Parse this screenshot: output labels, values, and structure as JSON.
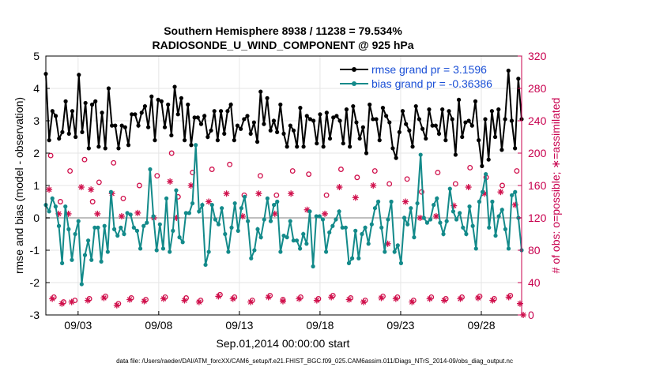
{
  "chart_data": {
    "type": "line",
    "title_line1": "Southern Hemisphere 8938 / 11238 = 79.534%",
    "title_line2": "RADIOSONDE_U_WIND_COMPONENT @ 925 hPa",
    "xlabel": "Sep.01,2014 00:00:00 start",
    "ylabel_left": "rmse and bias (model - observation)",
    "ylabel_right": "# of obs: o=possible; ∗=assimilated",
    "footer": "data file: /Users/raeder/DAI/ATM_forcXX/CAM6_setup/f.e21.FHIST_BGC.f09_025.CAM6assim.011/Diags_NTrS_2014-09/obs_diag_output.nc",
    "xlim": [
      1,
      30.5
    ],
    "ylim_left": [
      -3,
      5
    ],
    "ylim_right": [
      0,
      320
    ],
    "x_ticks": [
      3,
      8,
      13,
      18,
      23,
      28
    ],
    "x_tick_labels": [
      "09/03",
      "09/08",
      "09/13",
      "09/18",
      "09/23",
      "09/28"
    ],
    "y_ticks_left": [
      5,
      4,
      3,
      2,
      1,
      0,
      -1,
      -2,
      -3
    ],
    "y_ticks_right": [
      320,
      280,
      240,
      200,
      160,
      120,
      80,
      40,
      0
    ],
    "colors": {
      "rmse": "#000000",
      "bias": "#138a8a",
      "obs": "#d0104c",
      "zero_line": "#bfbfbf",
      "legend_text": "#1a4fd6",
      "right_axis": "#c8004e"
    },
    "series": [
      {
        "name": "rmse grand pr = 3.1596",
        "axis": "left",
        "values": [
          4.45,
          2.4,
          3.3,
          3.15,
          2.45,
          2.65,
          3.6,
          2.6,
          3.3,
          2.5,
          4.42,
          2.65,
          3.55,
          2.15,
          3.5,
          3.6,
          2.2,
          3.25,
          2.15,
          4.0,
          2.85,
          2.85,
          2.15,
          2.85,
          2.8,
          2.25,
          3.2,
          3.2,
          2.85,
          3.25,
          3.45,
          2.8,
          3.75,
          2.4,
          3.65,
          3.6,
          2.8,
          3.5,
          2.55,
          4.05,
          3.2,
          3.7,
          2.4,
          3.5,
          2.25,
          3.1,
          3.1,
          2.9,
          3.15,
          2.5,
          2.7,
          3.3,
          2.4,
          3.3,
          2.6,
          3.3,
          3.5,
          2.4,
          2.85,
          2.75,
          3.05,
          3.15,
          2.6,
          2.95,
          2.35,
          3.9,
          2.9,
          3.7,
          2.7,
          3.0,
          2.65,
          3.5,
          2.6,
          2.2,
          2.85,
          2.7,
          2.2,
          3.4,
          2.2,
          3.15,
          3.05,
          3.0,
          2.3,
          3.2,
          2.2,
          3.25,
          2.45,
          3.1,
          3.15,
          3.0,
          2.3,
          3.35,
          2.2,
          3.45,
          2.95,
          2.45,
          2.8,
          2.0,
          3.5,
          3.05,
          3.05,
          2.4,
          3.4,
          3.15,
          2.95,
          2.15,
          1.85,
          2.65,
          3.3,
          2.9,
          2.7,
          2.2,
          3.45,
          3.05,
          2.75,
          2.45,
          3.35,
          2.85,
          2.85,
          2.6,
          3.35,
          2.4,
          3.3,
          3.05,
          1.95,
          3.65,
          2.5,
          2.95,
          3.0,
          2.85,
          3.6,
          2.4,
          1.6,
          3.05,
          1.8,
          3.3,
          2.5,
          3.35,
          2.1,
          3.05,
          4.55,
          3.0,
          2.15,
          4.3,
          3.05
        ]
      },
      {
        "name": "bias grand pr = -0.36386",
        "axis": "left",
        "values": [
          0.4,
          0.2,
          0.6,
          0.35,
          -0.25,
          -1.4,
          0.35,
          -0.35,
          -1.3,
          -0.5,
          -0.1,
          -2.05,
          -1.15,
          -0.7,
          -1.3,
          -0.3,
          -0.3,
          -1.35,
          -0.25,
          -1.05,
          0.8,
          -0.35,
          -0.55,
          -0.3,
          -0.5,
          0.15,
          0.1,
          -0.3,
          -0.4,
          -0.95,
          -0.25,
          -0.15,
          1.5,
          0.05,
          -1.0,
          -0.2,
          -0.95,
          0.6,
          -1.05,
          -0.4,
          0.85,
          -0.6,
          -0.75,
          0.15,
          0.15,
          0.45,
          2.25,
          0.2,
          0.4,
          -1.45,
          -1.05,
          0.4,
          -0.05,
          -0.2,
          0.3,
          -0.5,
          -1.05,
          -0.3,
          0.45,
          -0.4,
          0.3,
          0.65,
          -0.1,
          -1.25,
          -1.0,
          -0.35,
          -0.6,
          -0.05,
          0.6,
          -0.1,
          0.4,
          0.5,
          -1.05,
          -0.55,
          -0.6,
          -0.1,
          -0.7,
          -0.7,
          -0.95,
          -0.5,
          -0.8,
          0.2,
          -1.5,
          0.05,
          0.05,
          -0.05,
          -1.05,
          -0.45,
          -0.25,
          -0.05,
          0.2,
          -0.3,
          -0.3,
          -1.4,
          -1.25,
          -0.4,
          -1.25,
          -0.5,
          -0.3,
          -0.8,
          -0.2,
          0.3,
          0.5,
          -0.3,
          -1.05,
          -0.05,
          0.5,
          -1.05,
          -0.85,
          -1.4,
          0.0,
          -0.2,
          0.3,
          -0.6,
          0.45,
          1.95,
          0.0,
          -0.15,
          -0.05,
          0.4,
          0.6,
          -0.15,
          -0.5,
          -0.1,
          0.9,
          0.2,
          -0.05,
          0.15,
          -0.3,
          -0.5,
          0.35,
          -0.25,
          -0.95,
          0.5,
          0.8,
          1.35,
          -0.3,
          0.5,
          -0.55,
          0.05,
          0.25,
          -0.35,
          -0.95,
          0.7,
          0.8,
          0.0,
          -1.0
        ]
      },
      {
        "name": "obs possible",
        "axis": "right",
        "marker": "o",
        "points": [
          [
            1.3,
            197
          ],
          [
            1.5,
            22
          ],
          [
            1.9,
            140
          ],
          [
            2.1,
            16
          ],
          [
            2.5,
            178
          ],
          [
            2.8,
            18
          ],
          [
            3.4,
            192
          ],
          [
            3.7,
            20
          ],
          [
            3.9,
            140
          ],
          [
            4.3,
            164
          ],
          [
            4.7,
            23
          ],
          [
            5.2,
            188
          ],
          [
            5.5,
            14
          ],
          [
            5.8,
            144
          ],
          [
            6.3,
            21
          ],
          [
            6.8,
            160
          ],
          [
            7.2,
            19
          ],
          [
            7.9,
            172
          ],
          [
            8.4,
            22
          ],
          [
            8.8,
            200
          ],
          [
            9.2,
            146
          ],
          [
            9.7,
            21
          ],
          [
            10.1,
            176
          ],
          [
            10.6,
            18
          ],
          [
            11.3,
            180
          ],
          [
            11.8,
            25
          ],
          [
            12.4,
            186
          ],
          [
            12.7,
            22
          ],
          [
            13.3,
            148
          ],
          [
            13.8,
            18
          ],
          [
            14.3,
            172
          ],
          [
            14.9,
            24
          ],
          [
            15.3,
            148
          ],
          [
            15.7,
            19
          ],
          [
            16.3,
            178
          ],
          [
            16.8,
            22
          ],
          [
            17.3,
            174
          ],
          [
            17.9,
            20
          ],
          [
            18.4,
            148
          ],
          [
            18.8,
            24
          ],
          [
            19.3,
            180
          ],
          [
            19.9,
            21
          ],
          [
            20.3,
            170
          ],
          [
            20.8,
            18
          ],
          [
            21.4,
            178
          ],
          [
            21.9,
            23
          ],
          [
            22.3,
            162
          ],
          [
            22.8,
            22
          ],
          [
            23.4,
            168
          ],
          [
            23.8,
            18
          ],
          [
            24.3,
            152
          ],
          [
            24.9,
            22
          ],
          [
            25.3,
            176
          ],
          [
            25.8,
            20
          ],
          [
            26.4,
            162
          ],
          [
            26.8,
            22
          ],
          [
            27.3,
            182
          ],
          [
            27.9,
            23
          ],
          [
            28.3,
            170
          ],
          [
            28.8,
            20
          ],
          [
            29.3,
            160
          ],
          [
            29.8,
            24
          ],
          [
            30.2,
            178
          ]
        ]
      },
      {
        "name": "obs assimilated",
        "axis": "right",
        "marker": "*",
        "points": [
          [
            1.2,
            155
          ],
          [
            1.4,
            20
          ],
          [
            1.8,
            125
          ],
          [
            2.0,
            14
          ],
          [
            2.4,
            125
          ],
          [
            2.6,
            16
          ],
          [
            3.2,
            158
          ],
          [
            3.6,
            18
          ],
          [
            3.8,
            155
          ],
          [
            4.2,
            125
          ],
          [
            4.6,
            21
          ],
          [
            5.1,
            150
          ],
          [
            5.4,
            12
          ],
          [
            5.7,
            122
          ],
          [
            6.2,
            19
          ],
          [
            6.7,
            126
          ],
          [
            7.1,
            17
          ],
          [
            7.7,
            120
          ],
          [
            8.3,
            20
          ],
          [
            8.7,
            165
          ],
          [
            9.1,
            120
          ],
          [
            9.6,
            18
          ],
          [
            10.0,
            160
          ],
          [
            10.5,
            16
          ],
          [
            11.1,
            140
          ],
          [
            11.7,
            23
          ],
          [
            12.2,
            150
          ],
          [
            12.6,
            20
          ],
          [
            13.2,
            122
          ],
          [
            13.7,
            16
          ],
          [
            14.2,
            150
          ],
          [
            14.8,
            22
          ],
          [
            15.2,
            125
          ],
          [
            15.7,
            17
          ],
          [
            16.2,
            150
          ],
          [
            16.7,
            20
          ],
          [
            17.2,
            130
          ],
          [
            17.8,
            18
          ],
          [
            18.3,
            125
          ],
          [
            18.7,
            22
          ],
          [
            19.2,
            158
          ],
          [
            19.8,
            19
          ],
          [
            20.2,
            145
          ],
          [
            20.7,
            16
          ],
          [
            21.3,
            160
          ],
          [
            21.8,
            21
          ],
          [
            22.2,
            88
          ],
          [
            22.7,
            20
          ],
          [
            23.3,
            140
          ],
          [
            23.7,
            16
          ],
          [
            24.2,
            120
          ],
          [
            24.8,
            20
          ],
          [
            25.2,
            122
          ],
          [
            25.7,
            18
          ],
          [
            26.3,
            135
          ],
          [
            26.7,
            20
          ],
          [
            27.2,
            158
          ],
          [
            27.8,
            21
          ],
          [
            28.2,
            150
          ],
          [
            28.7,
            18
          ],
          [
            29.2,
            152
          ],
          [
            29.7,
            22
          ],
          [
            30.1,
            136
          ],
          [
            30.4,
            14
          ],
          [
            30.6,
            0
          ]
        ]
      }
    ]
  }
}
